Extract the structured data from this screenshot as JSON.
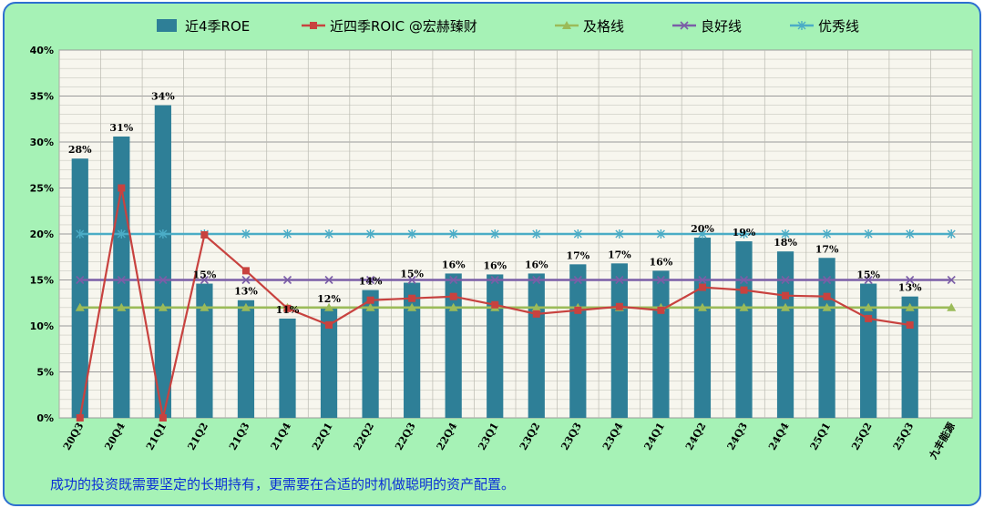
{
  "caption": "成功的投资既需要坚定的长期持有，更需要在合适的时机做聪明的资产配置。",
  "colors": {
    "background": "#a6f2b6",
    "frame": "#2e6fd0",
    "plot_background": "#f7f6ee",
    "roe_bar": "#2e7f97",
    "roic_line": "#c8423f",
    "pass_line": "#9bbb59",
    "good_line": "#7b5ea7",
    "excellent_line": "#4bacc6",
    "caption": "#0a2fd6"
  },
  "chart_data": {
    "type": "bar",
    "legend_position": "top",
    "grid": true,
    "ylim": [
      0,
      40
    ],
    "y_ticks": [
      0,
      5,
      10,
      15,
      20,
      25,
      30,
      35,
      40
    ],
    "y_tick_labels": [
      "0%",
      "5%",
      "10%",
      "15%",
      "20%",
      "25%",
      "30%",
      "35%",
      "40%"
    ],
    "categories": [
      "20Q3",
      "20Q4",
      "21Q1",
      "21Q2",
      "21Q3",
      "21Q4",
      "22Q1",
      "22Q2",
      "22Q3",
      "22Q4",
      "23Q1",
      "23Q2",
      "23Q3",
      "23Q4",
      "24Q1",
      "24Q2",
      "24Q3",
      "24Q4",
      "25Q1",
      "25Q2",
      "25Q3",
      "九丰能源"
    ],
    "series": [
      {
        "name": "近4季ROE",
        "type": "bar",
        "values": [
          28.2,
          30.6,
          34.0,
          14.6,
          12.8,
          10.8,
          12.0,
          13.9,
          14.7,
          15.7,
          15.6,
          15.7,
          16.7,
          16.8,
          16.0,
          19.6,
          19.2,
          18.1,
          17.4,
          14.6,
          13.2,
          null
        ],
        "data_labels": [
          "28%",
          "31%",
          "34%",
          "15%",
          "13%",
          "11%",
          "12%",
          "14%",
          "15%",
          "16%",
          "16%",
          "16%",
          "17%",
          "17%",
          "16%",
          "20%",
          "19%",
          "18%",
          "17%",
          "15%",
          "13%",
          ""
        ]
      },
      {
        "name": "近四季ROIC   @宏赫臻财",
        "type": "line",
        "marker": "square",
        "values": [
          0,
          25.0,
          0,
          19.9,
          16.0,
          11.9,
          10.1,
          12.8,
          13.0,
          13.2,
          12.3,
          11.3,
          11.7,
          12.1,
          11.7,
          14.2,
          13.9,
          13.3,
          13.2,
          10.8,
          10.1,
          null
        ]
      },
      {
        "name": "及格线",
        "type": "line",
        "marker": "triangle",
        "values": [
          12,
          12,
          12,
          12,
          12,
          12,
          12,
          12,
          12,
          12,
          12,
          12,
          12,
          12,
          12,
          12,
          12,
          12,
          12,
          12,
          12,
          12
        ]
      },
      {
        "name": "良好线",
        "type": "line",
        "marker": "x",
        "values": [
          15,
          15,
          15,
          15,
          15,
          15,
          15,
          15,
          15,
          15,
          15,
          15,
          15,
          15,
          15,
          15,
          15,
          15,
          15,
          15,
          15,
          15
        ]
      },
      {
        "name": "优秀线",
        "type": "line",
        "marker": "star",
        "values": [
          20,
          20,
          20,
          20,
          20,
          20,
          20,
          20,
          20,
          20,
          20,
          20,
          20,
          20,
          20,
          20,
          20,
          20,
          20,
          20,
          20,
          20
        ]
      }
    ]
  }
}
